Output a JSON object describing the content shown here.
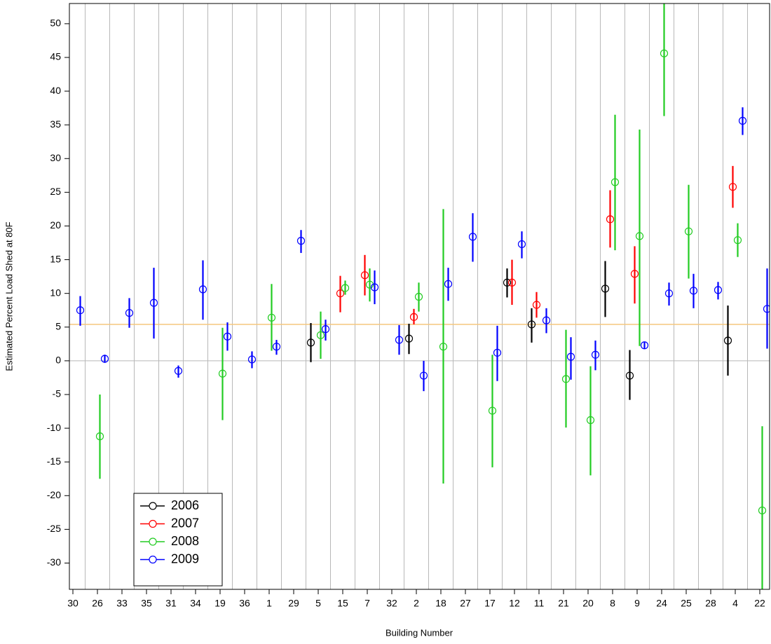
{
  "chart_data": {
    "type": "errorbar",
    "y_label": "Estimated Percent Load Shed at 80F",
    "x_label": "Building Number",
    "categories": [
      "30",
      "26",
      "33",
      "35",
      "31",
      "34",
      "19",
      "36",
      "1",
      "29",
      "5",
      "15",
      "7",
      "32",
      "2",
      "18",
      "27",
      "17",
      "12",
      "11",
      "21",
      "20",
      "8",
      "9",
      "24",
      "25",
      "28",
      "4",
      "22"
    ],
    "ylim": [
      -33.9,
      53.0
    ],
    "yticks": [
      -30,
      -25,
      -20,
      -15,
      -10,
      -5,
      0,
      5,
      10,
      15,
      20,
      25,
      30,
      35,
      40,
      45,
      50
    ],
    "reference_line": 5.4,
    "reference_color": "#f5c77e",
    "zero_line": true,
    "legend": "bottom-left",
    "series": [
      {
        "name": "2006",
        "color": "#000000",
        "values": [
          null,
          null,
          null,
          null,
          null,
          null,
          null,
          null,
          null,
          null,
          2.7,
          null,
          null,
          null,
          3.3,
          null,
          null,
          null,
          11.6,
          5.4,
          null,
          null,
          10.7,
          -2.2,
          null,
          null,
          null,
          3.0,
          null
        ],
        "lower": [
          null,
          null,
          null,
          null,
          null,
          null,
          null,
          null,
          null,
          null,
          -0.2,
          null,
          null,
          null,
          1.0,
          null,
          null,
          null,
          9.4,
          2.7,
          null,
          null,
          6.5,
          -5.8,
          null,
          null,
          null,
          -2.2,
          null
        ],
        "upper": [
          null,
          null,
          null,
          null,
          null,
          null,
          null,
          null,
          null,
          null,
          5.6,
          null,
          null,
          null,
          5.5,
          null,
          null,
          null,
          13.7,
          7.8,
          null,
          null,
          14.8,
          1.6,
          null,
          null,
          null,
          8.2,
          null
        ]
      },
      {
        "name": "2007",
        "color": "#ff0000",
        "values": [
          null,
          null,
          null,
          null,
          null,
          null,
          null,
          null,
          null,
          null,
          null,
          10.0,
          12.7,
          null,
          6.5,
          null,
          null,
          null,
          11.6,
          8.3,
          null,
          null,
          21.0,
          12.9,
          null,
          null,
          null,
          25.8,
          null
        ],
        "lower": [
          null,
          null,
          null,
          null,
          null,
          null,
          null,
          null,
          null,
          null,
          null,
          7.2,
          9.7,
          null,
          5.4,
          null,
          null,
          null,
          8.3,
          6.4,
          null,
          null,
          16.8,
          8.5,
          null,
          null,
          null,
          22.7,
          null
        ],
        "upper": [
          null,
          null,
          null,
          null,
          null,
          null,
          null,
          null,
          null,
          null,
          null,
          12.6,
          15.7,
          null,
          7.7,
          null,
          null,
          null,
          15.0,
          10.2,
          null,
          null,
          25.3,
          17.0,
          null,
          null,
          null,
          28.9,
          null
        ]
      },
      {
        "name": "2008",
        "color": "#22cc22",
        "values": [
          null,
          -11.2,
          null,
          null,
          null,
          null,
          -1.9,
          null,
          6.4,
          null,
          3.8,
          10.8,
          11.3,
          null,
          9.5,
          2.1,
          null,
          -7.4,
          null,
          null,
          -2.7,
          -8.8,
          26.5,
          18.5,
          45.6,
          19.2,
          null,
          17.9,
          -22.2
        ],
        "lower": [
          null,
          -17.5,
          null,
          null,
          null,
          null,
          -8.8,
          null,
          1.5,
          null,
          0.3,
          9.8,
          8.8,
          null,
          7.3,
          -18.2,
          null,
          -15.8,
          null,
          null,
          -9.9,
          -17.0,
          16.4,
          2.2,
          36.3,
          12.2,
          null,
          15.4,
          -35.0
        ],
        "upper": [
          null,
          -5.0,
          null,
          null,
          null,
          null,
          4.9,
          null,
          11.4,
          null,
          7.3,
          11.9,
          13.7,
          null,
          11.6,
          22.5,
          null,
          0.9,
          null,
          null,
          4.6,
          -0.8,
          36.5,
          34.3,
          55.0,
          26.1,
          null,
          20.4,
          -9.7
        ]
      },
      {
        "name": "2009",
        "color": "#0000ff",
        "values": [
          7.5,
          0.3,
          7.1,
          8.6,
          -1.5,
          10.6,
          3.6,
          0.2,
          2.1,
          17.8,
          4.7,
          null,
          10.9,
          3.1,
          -2.2,
          11.4,
          18.4,
          1.2,
          17.3,
          6.0,
          0.6,
          0.9,
          null,
          2.3,
          10.0,
          10.4,
          10.5,
          35.6,
          7.7
        ],
        "lower": [
          5.2,
          -0.3,
          4.9,
          3.3,
          -2.5,
          6.1,
          1.5,
          -1.1,
          0.9,
          16.0,
          3.0,
          null,
          8.4,
          0.9,
          -4.5,
          8.9,
          14.7,
          -3.0,
          15.2,
          4.1,
          -2.8,
          -1.4,
          null,
          1.8,
          8.2,
          7.8,
          9.1,
          33.5,
          1.8
        ],
        "upper": [
          9.6,
          0.9,
          9.3,
          13.8,
          -0.7,
          14.9,
          5.7,
          1.4,
          3.1,
          19.4,
          6.1,
          null,
          13.4,
          5.3,
          0.0,
          13.8,
          21.9,
          5.2,
          19.2,
          7.8,
          3.5,
          3.0,
          null,
          2.8,
          11.6,
          12.9,
          11.7,
          37.6,
          13.7
        ]
      }
    ]
  }
}
